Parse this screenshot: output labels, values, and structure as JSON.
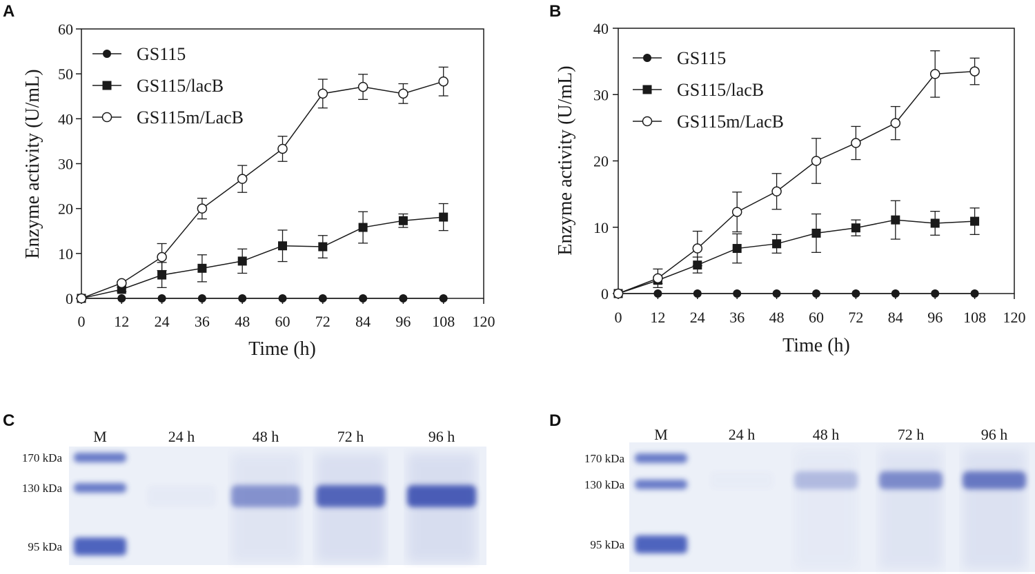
{
  "panels": {
    "A": "A",
    "B": "B",
    "C": "C",
    "D": "D"
  },
  "chart_data": [
    {
      "panel": "A",
      "type": "line",
      "xlabel": "Time (h)",
      "ylabel": "Enzyme activity (U/mL)",
      "xlim": [
        0,
        120
      ],
      "ylim": [
        0,
        60
      ],
      "xticks": [
        0,
        12,
        24,
        36,
        48,
        60,
        72,
        84,
        96,
        108,
        120
      ],
      "yticks": [
        0,
        10,
        20,
        30,
        40,
        50,
        60
      ],
      "x": [
        0,
        12,
        24,
        36,
        48,
        60,
        72,
        84,
        96,
        108
      ],
      "legend": "top-left",
      "series": [
        {
          "name": "GS115",
          "marker": "filled-circle",
          "values": [
            0,
            0,
            0,
            0,
            0,
            0,
            0,
            0,
            0,
            0
          ],
          "errors": [
            0,
            0,
            0,
            0,
            0,
            0,
            0,
            0,
            0,
            0
          ]
        },
        {
          "name": "GS115/lacB",
          "marker": "filled-square",
          "values": [
            0,
            2,
            5.2,
            6.7,
            8.3,
            11.7,
            11.5,
            15.8,
            17.3,
            18.1
          ],
          "errors": [
            0,
            0.5,
            2.8,
            3.0,
            2.7,
            3.5,
            2.5,
            3.5,
            1.5,
            3.0
          ]
        },
        {
          "name": "GS115m/LacB",
          "marker": "open-circle",
          "values": [
            0,
            3.4,
            9.2,
            20,
            26.6,
            33.3,
            45.6,
            47.1,
            45.6,
            48.3
          ],
          "errors": [
            0,
            0.3,
            3.0,
            2.3,
            3.0,
            2.8,
            3.2,
            2.8,
            2.2,
            3.2
          ]
        }
      ]
    },
    {
      "panel": "B",
      "type": "line",
      "xlabel": "Time (h)",
      "ylabel": "Enzyme activity (U/mL)",
      "xlim": [
        0,
        120
      ],
      "ylim": [
        0,
        40
      ],
      "xticks": [
        0,
        12,
        24,
        36,
        48,
        60,
        72,
        84,
        96,
        108,
        120
      ],
      "yticks": [
        0,
        10,
        20,
        30,
        40
      ],
      "x": [
        0,
        12,
        24,
        36,
        48,
        60,
        72,
        84,
        96,
        108
      ],
      "legend": "top-left",
      "series": [
        {
          "name": "GS115",
          "marker": "filled-circle",
          "values": [
            0,
            0,
            0,
            0,
            0,
            0,
            0,
            0,
            0,
            0
          ],
          "errors": [
            0,
            0,
            0,
            0,
            0,
            0,
            0,
            0,
            0,
            0
          ]
        },
        {
          "name": "GS115/lacB",
          "marker": "filled-square",
          "values": [
            0,
            2,
            4.3,
            6.8,
            7.5,
            9.1,
            9.9,
            11.1,
            10.6,
            10.9
          ],
          "errors": [
            0,
            0.5,
            1.2,
            2.2,
            1.4,
            2.9,
            1.2,
            2.9,
            1.8,
            2.0
          ]
        },
        {
          "name": "GS115m/LacB",
          "marker": "open-circle",
          "values": [
            0,
            2.3,
            6.8,
            12.3,
            15.4,
            20,
            22.7,
            25.7,
            33.1,
            33.5
          ],
          "errors": [
            0,
            1.4,
            2.6,
            3.0,
            2.7,
            3.4,
            2.5,
            2.5,
            3.5,
            2.0
          ]
        }
      ]
    }
  ],
  "gels": [
    {
      "panel": "C",
      "lanes": [
        "M",
        "24 h",
        "48 h",
        "72 h",
        "96 h"
      ],
      "markers": [
        "170 kDa",
        "130 kDa",
        "95 kDa"
      ],
      "band_intensity": [
        0,
        0.03,
        0.55,
        0.85,
        0.9
      ]
    },
    {
      "panel": "D",
      "lanes": [
        "M",
        "24 h",
        "48 h",
        "72 h",
        "96 h"
      ],
      "markers": [
        "170 kDa",
        "130 kDa",
        "95 kDa"
      ],
      "band_intensity": [
        0,
        0.02,
        0.3,
        0.6,
        0.72
      ]
    }
  ],
  "colors": {
    "ink": "#1a1a1a",
    "gel_bg": "#ecf0f8",
    "band": "#3b4fb0",
    "marker_band": "#3e55b8"
  }
}
